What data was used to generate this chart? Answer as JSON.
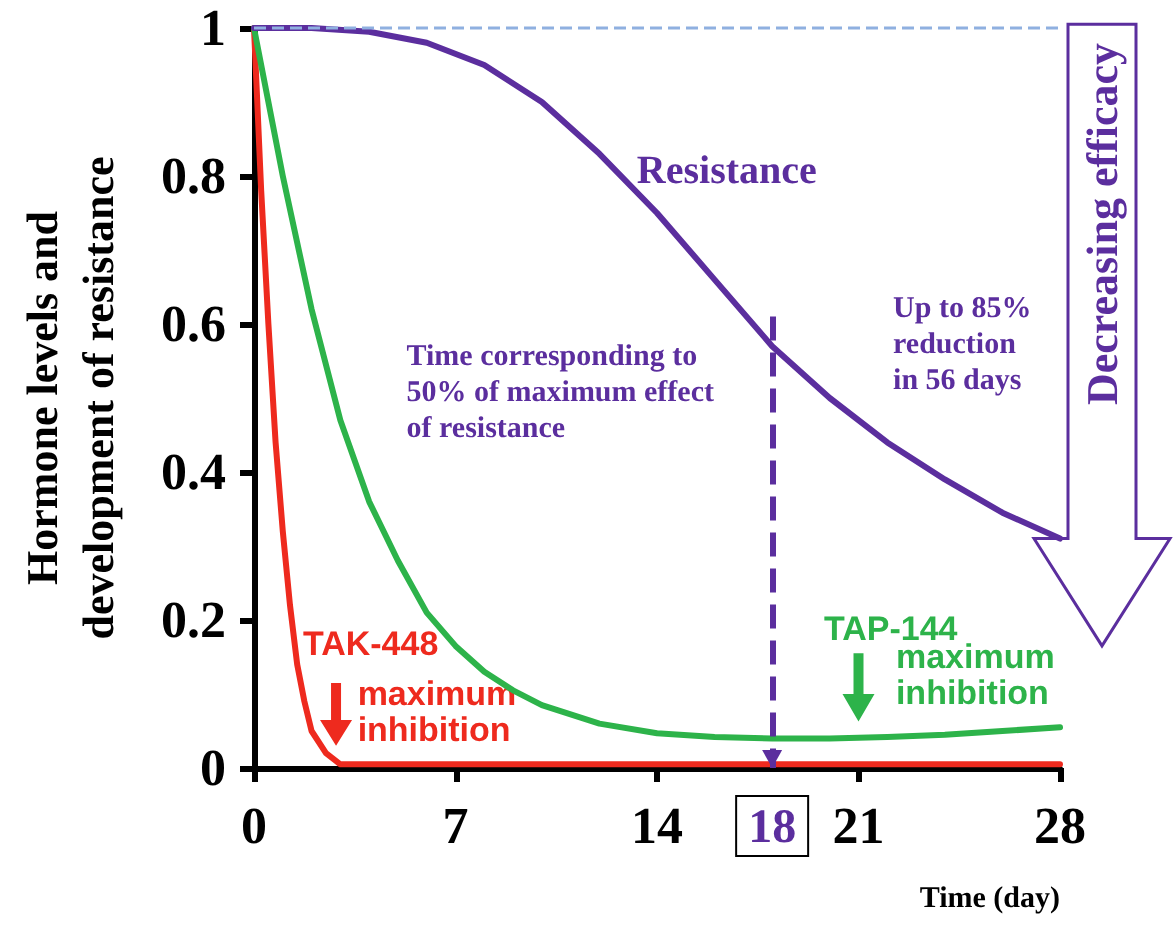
{
  "chart_data": {
    "type": "line",
    "xlabel": "Time (day)",
    "ylabel": "Hormone levels and\ndevelopment of resistance",
    "xlim": [
      0,
      28
    ],
    "xticks": [
      0,
      7,
      14,
      21,
      28
    ],
    "ylim": [
      0,
      1
    ],
    "yticks": [
      0,
      0.2,
      0.4,
      0.6,
      0.8,
      1
    ],
    "grid": false,
    "marker": "none",
    "line_style": "solid",
    "series": [
      {
        "name": "TAK-448",
        "color": "#ee2a1e",
        "x": [
          0,
          0.25,
          0.5,
          0.75,
          1,
          1.25,
          1.5,
          1.75,
          2,
          2.5,
          3,
          4,
          7,
          14,
          21,
          28
        ],
        "values": [
          1,
          0.78,
          0.6,
          0.44,
          0.32,
          0.22,
          0.14,
          0.09,
          0.05,
          0.02,
          0.005,
          0.005,
          0.005,
          0.005,
          0.005,
          0.005
        ]
      },
      {
        "name": "TAP-144",
        "color": "#2db34a",
        "x": [
          0,
          1,
          2,
          3,
          4,
          5,
          6,
          7,
          8,
          9,
          10,
          12,
          14,
          16,
          18,
          20,
          22,
          24,
          26,
          28
        ],
        "values": [
          1,
          0.8,
          0.62,
          0.47,
          0.36,
          0.28,
          0.21,
          0.165,
          0.13,
          0.105,
          0.085,
          0.06,
          0.047,
          0.042,
          0.04,
          0.04,
          0.042,
          0.045,
          0.05,
          0.055
        ]
      },
      {
        "name": "Resistance",
        "color": "#5b2e9e",
        "x": [
          0,
          2,
          4,
          6,
          8,
          10,
          12,
          14,
          16,
          18,
          20,
          22,
          24,
          26,
          28
        ],
        "values": [
          1,
          1,
          0.995,
          0.98,
          0.95,
          0.9,
          0.83,
          0.75,
          0.66,
          0.57,
          0.5,
          0.44,
          0.39,
          0.345,
          0.31
        ]
      }
    ],
    "ref_lines": [
      {
        "axis": "y",
        "value": 1,
        "color": "#8fb0e0",
        "line_style": "dashed"
      },
      {
        "axis": "x",
        "value": 18,
        "label": "18",
        "color": "#5b2e9e",
        "line_style": "dashed"
      }
    ],
    "annotations": [
      "maximum\ninhibition",
      "maximum\ninhibition",
      "Time corresponding to\n50% of maximum effect\nof resistance",
      "Up to 85%\nreduction\nin 56 days",
      "Decreasing efficacy"
    ]
  }
}
